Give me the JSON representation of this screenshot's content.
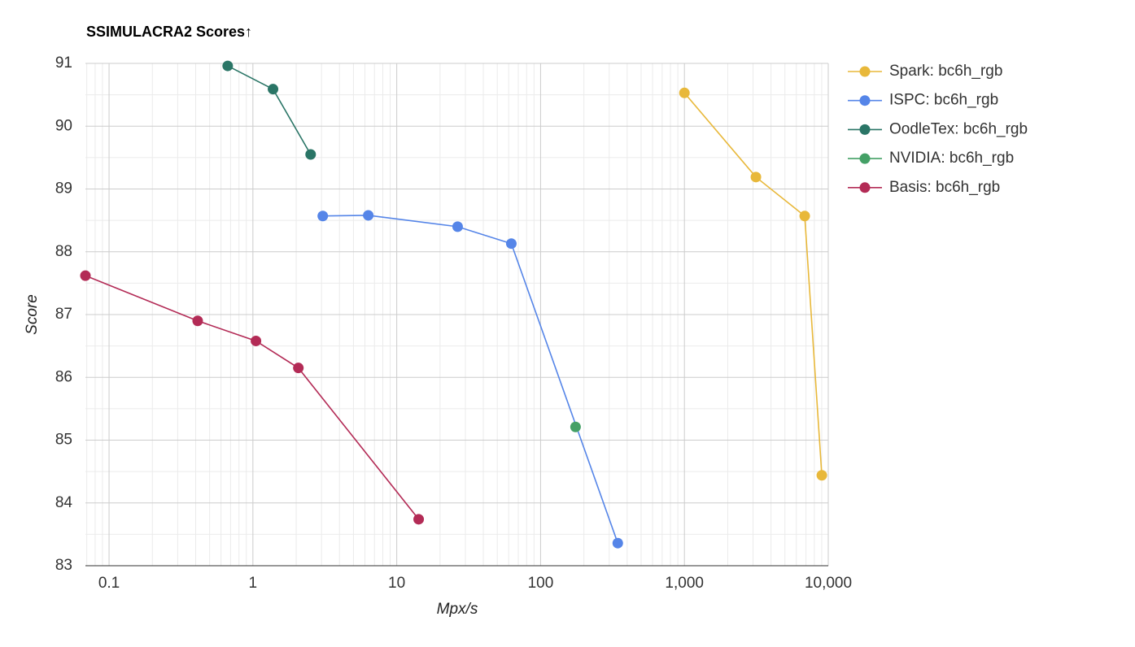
{
  "chart_data": {
    "type": "line",
    "title": "SSIMULACRA2 Scores↑",
    "x_label": "Mpx/s",
    "y_label": "Score",
    "x_log": true,
    "grid": true,
    "legend": "right",
    "xlim": [
      0.0685,
      10000
    ],
    "ylim": [
      83,
      91
    ],
    "xticks": [
      0.1,
      1,
      10,
      100,
      {
        "value": 1000,
        "label": "1,000"
      },
      {
        "value": 10000,
        "label": "10,000"
      }
    ],
    "yticks": [
      83,
      84,
      85,
      86,
      87,
      88,
      89,
      90,
      91
    ],
    "series": [
      {
        "name": "Spark: bc6h_rgb",
        "color": "#e8b83a",
        "x": [
          1000,
          3140,
          6860,
          9020
        ],
        "values": [
          90.53,
          89.19,
          88.57,
          84.44
        ]
      },
      {
        "name": "ISPC: bc6h_rgb",
        "color": "#5585e8",
        "x": [
          3.06,
          6.34,
          26.5,
          62.6,
          344
        ],
        "values": [
          88.57,
          88.58,
          88.4,
          88.13,
          83.36
        ]
      },
      {
        "name": "OodleTex: bc6h_rgb",
        "color": "#2a7566",
        "x": [
          0.668,
          1.38,
          2.52
        ],
        "values": [
          90.96,
          90.59,
          89.55
        ]
      },
      {
        "name": "NVIDIA: bc6h_rgb",
        "color": "#44a066",
        "x": [
          175
        ],
        "values": [
          85.21
        ]
      },
      {
        "name": "Basis: bc6h_rgb",
        "color": "#b32b56",
        "x": [
          0.0685,
          0.413,
          1.05,
          2.07,
          14.2
        ],
        "values": [
          87.62,
          86.9,
          86.58,
          86.15,
          83.74
        ]
      }
    ]
  }
}
